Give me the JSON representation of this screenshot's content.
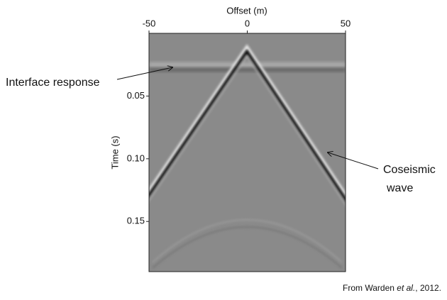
{
  "chart_data": {
    "type": "image",
    "xlabel": "Offset (m)",
    "ylabel": "Time (s)",
    "xlim": [
      -50,
      50
    ],
    "xticks": [
      -50,
      0,
      50
    ],
    "x_axis_position": "top",
    "ylim": [
      0,
      0.19
    ],
    "yticks": [
      0.05,
      {
        "value": 0.1,
        "label": "0.10"
      },
      0.15
    ],
    "y_inverted": true,
    "annotations": [
      "Interface response",
      "Coseismic",
      "wave"
    ],
    "caption": [
      "From Warden ",
      "et al.",
      ", 2012."
    ]
  }
}
